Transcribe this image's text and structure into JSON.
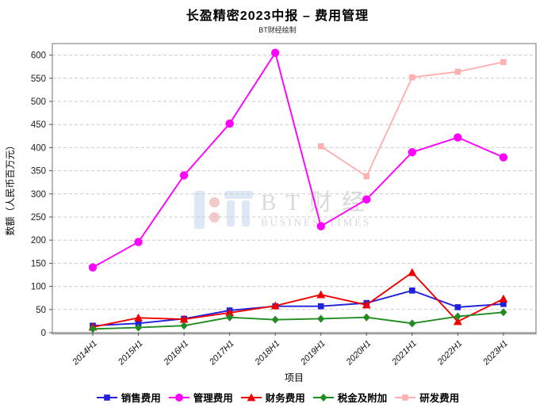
{
  "chart_data": {
    "type": "line",
    "title": "长盈精密2023中报 – 费用管理",
    "subtitle": "BT财经绘制",
    "xlabel": "项目",
    "ylabel": "数额（人民币百万元）",
    "categories": [
      "2014H1",
      "2015H1",
      "2016H1",
      "2017H1",
      "2018H1",
      "2019H1",
      "2020H1",
      "2021H1",
      "2022H1",
      "2023H1"
    ],
    "ylim": [
      0,
      625
    ],
    "yticks": [
      0,
      50,
      100,
      150,
      200,
      250,
      300,
      350,
      400,
      450,
      500,
      550,
      600
    ],
    "grid": "horizontal-dashed",
    "legend_position": "bottom",
    "series": [
      {
        "name": "销售费用",
        "color": "#2020dd",
        "marker": "square",
        "values": [
          15,
          20,
          30,
          48,
          57,
          57,
          64,
          91,
          55,
          62
        ]
      },
      {
        "name": "管理费用",
        "color": "#ff00ff",
        "marker": "circle",
        "values": [
          141,
          196,
          340,
          452,
          605,
          230,
          288,
          390,
          422,
          379
        ]
      },
      {
        "name": "财务费用",
        "color": "#ee0000",
        "marker": "triangle",
        "values": [
          12,
          32,
          29,
          43,
          58,
          82,
          60,
          130,
          24,
          73
        ]
      },
      {
        "name": "税金及附加",
        "color": "#228b22",
        "marker": "diamond",
        "values": [
          8,
          11,
          15,
          33,
          28,
          30,
          33,
          20,
          35,
          44
        ]
      },
      {
        "name": "研发费用",
        "color": "#ffb0b0",
        "marker": "square",
        "values": [
          null,
          null,
          null,
          null,
          null,
          403,
          338,
          552,
          564,
          585
        ]
      }
    ],
    "watermark": {
      "text": "BT财经",
      "subtext": "BUSINESSTIMES"
    }
  }
}
